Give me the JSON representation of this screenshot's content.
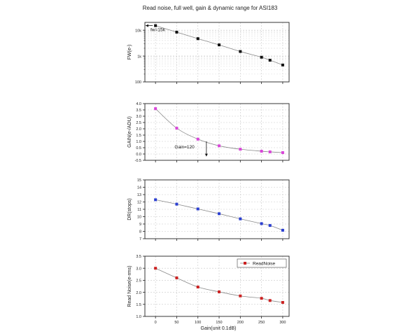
{
  "title": "Read noise, full well, gain & dynamic range for ASI183",
  "xlabel": "Gain(unit 0.1dB)",
  "chart_data": [
    {
      "type": "line",
      "ylabel": "FW(e-)",
      "yscale": "log",
      "ylim": [
        100,
        20000
      ],
      "yticks": [
        100,
        1000,
        10000
      ],
      "ytick_labels": [
        "100",
        "1k",
        "10k"
      ],
      "xlim": [
        -25,
        315
      ],
      "grid": true,
      "color": "#111111",
      "x": [
        0,
        50,
        100,
        150,
        200,
        250,
        270,
        300
      ],
      "y": [
        15000,
        8400,
        4700,
        2700,
        1500,
        900,
        690,
        450
      ],
      "annotation": {
        "text": "fw=15k"
      }
    },
    {
      "type": "line",
      "ylabel": "GAIN(e-/ADU)",
      "ylim": [
        -0.5,
        4.0
      ],
      "yticks": [
        -0.5,
        0.0,
        0.5,
        1.0,
        1.5,
        2.0,
        2.5,
        3.0,
        3.5,
        4.0
      ],
      "ytick_labels": [
        "-0.5",
        "0.0",
        "0.5",
        "1.0",
        "1.5",
        "2.0",
        "2.5",
        "3.0",
        "3.5",
        "4.0"
      ],
      "xlim": [
        -25,
        315
      ],
      "grid": true,
      "color": "#d946d9",
      "x": [
        0,
        50,
        100,
        150,
        200,
        250,
        270,
        300
      ],
      "y": [
        3.6,
        2.05,
        1.18,
        0.65,
        0.38,
        0.22,
        0.17,
        0.11
      ],
      "annotation": {
        "text": "Gain=120"
      }
    },
    {
      "type": "line",
      "ylabel": "DR(stops)",
      "ylim": [
        7,
        15
      ],
      "yticks": [
        7,
        8,
        9,
        10,
        11,
        12,
        13,
        14,
        15
      ],
      "ytick_labels": [
        "7",
        "8",
        "9",
        "10",
        "11",
        "12",
        "13",
        "14",
        "15"
      ],
      "xlim": [
        -25,
        315
      ],
      "grid": true,
      "color": "#2b3fd1",
      "x": [
        0,
        50,
        100,
        150,
        200,
        250,
        270,
        300
      ],
      "y": [
        12.3,
        11.7,
        11.05,
        10.4,
        9.7,
        9.05,
        8.8,
        8.15
      ]
    },
    {
      "type": "line",
      "ylabel": "Read Noise(e-rms)",
      "ylim": [
        1.0,
        3.5
      ],
      "yticks": [
        1.0,
        1.5,
        2.0,
        2.5,
        3.0,
        3.5
      ],
      "ytick_labels": [
        "1.0",
        "1.5",
        "2.0",
        "2.5",
        "3.0",
        "3.5"
      ],
      "xlim": [
        -25,
        315
      ],
      "grid": true,
      "color": "#cc2222",
      "x": [
        0,
        50,
        100,
        150,
        200,
        250,
        270,
        300
      ],
      "y": [
        3.0,
        2.6,
        2.22,
        2.02,
        1.85,
        1.75,
        1.66,
        1.58
      ],
      "legend": {
        "label": "ReadNoise",
        "position": "top-right"
      }
    }
  ],
  "xaxis": {
    "ticks": [
      0,
      50,
      100,
      150,
      200,
      250,
      300
    ],
    "tick_labels": [
      "0",
      "50",
      "100",
      "150",
      "200",
      "250",
      "300"
    ]
  }
}
